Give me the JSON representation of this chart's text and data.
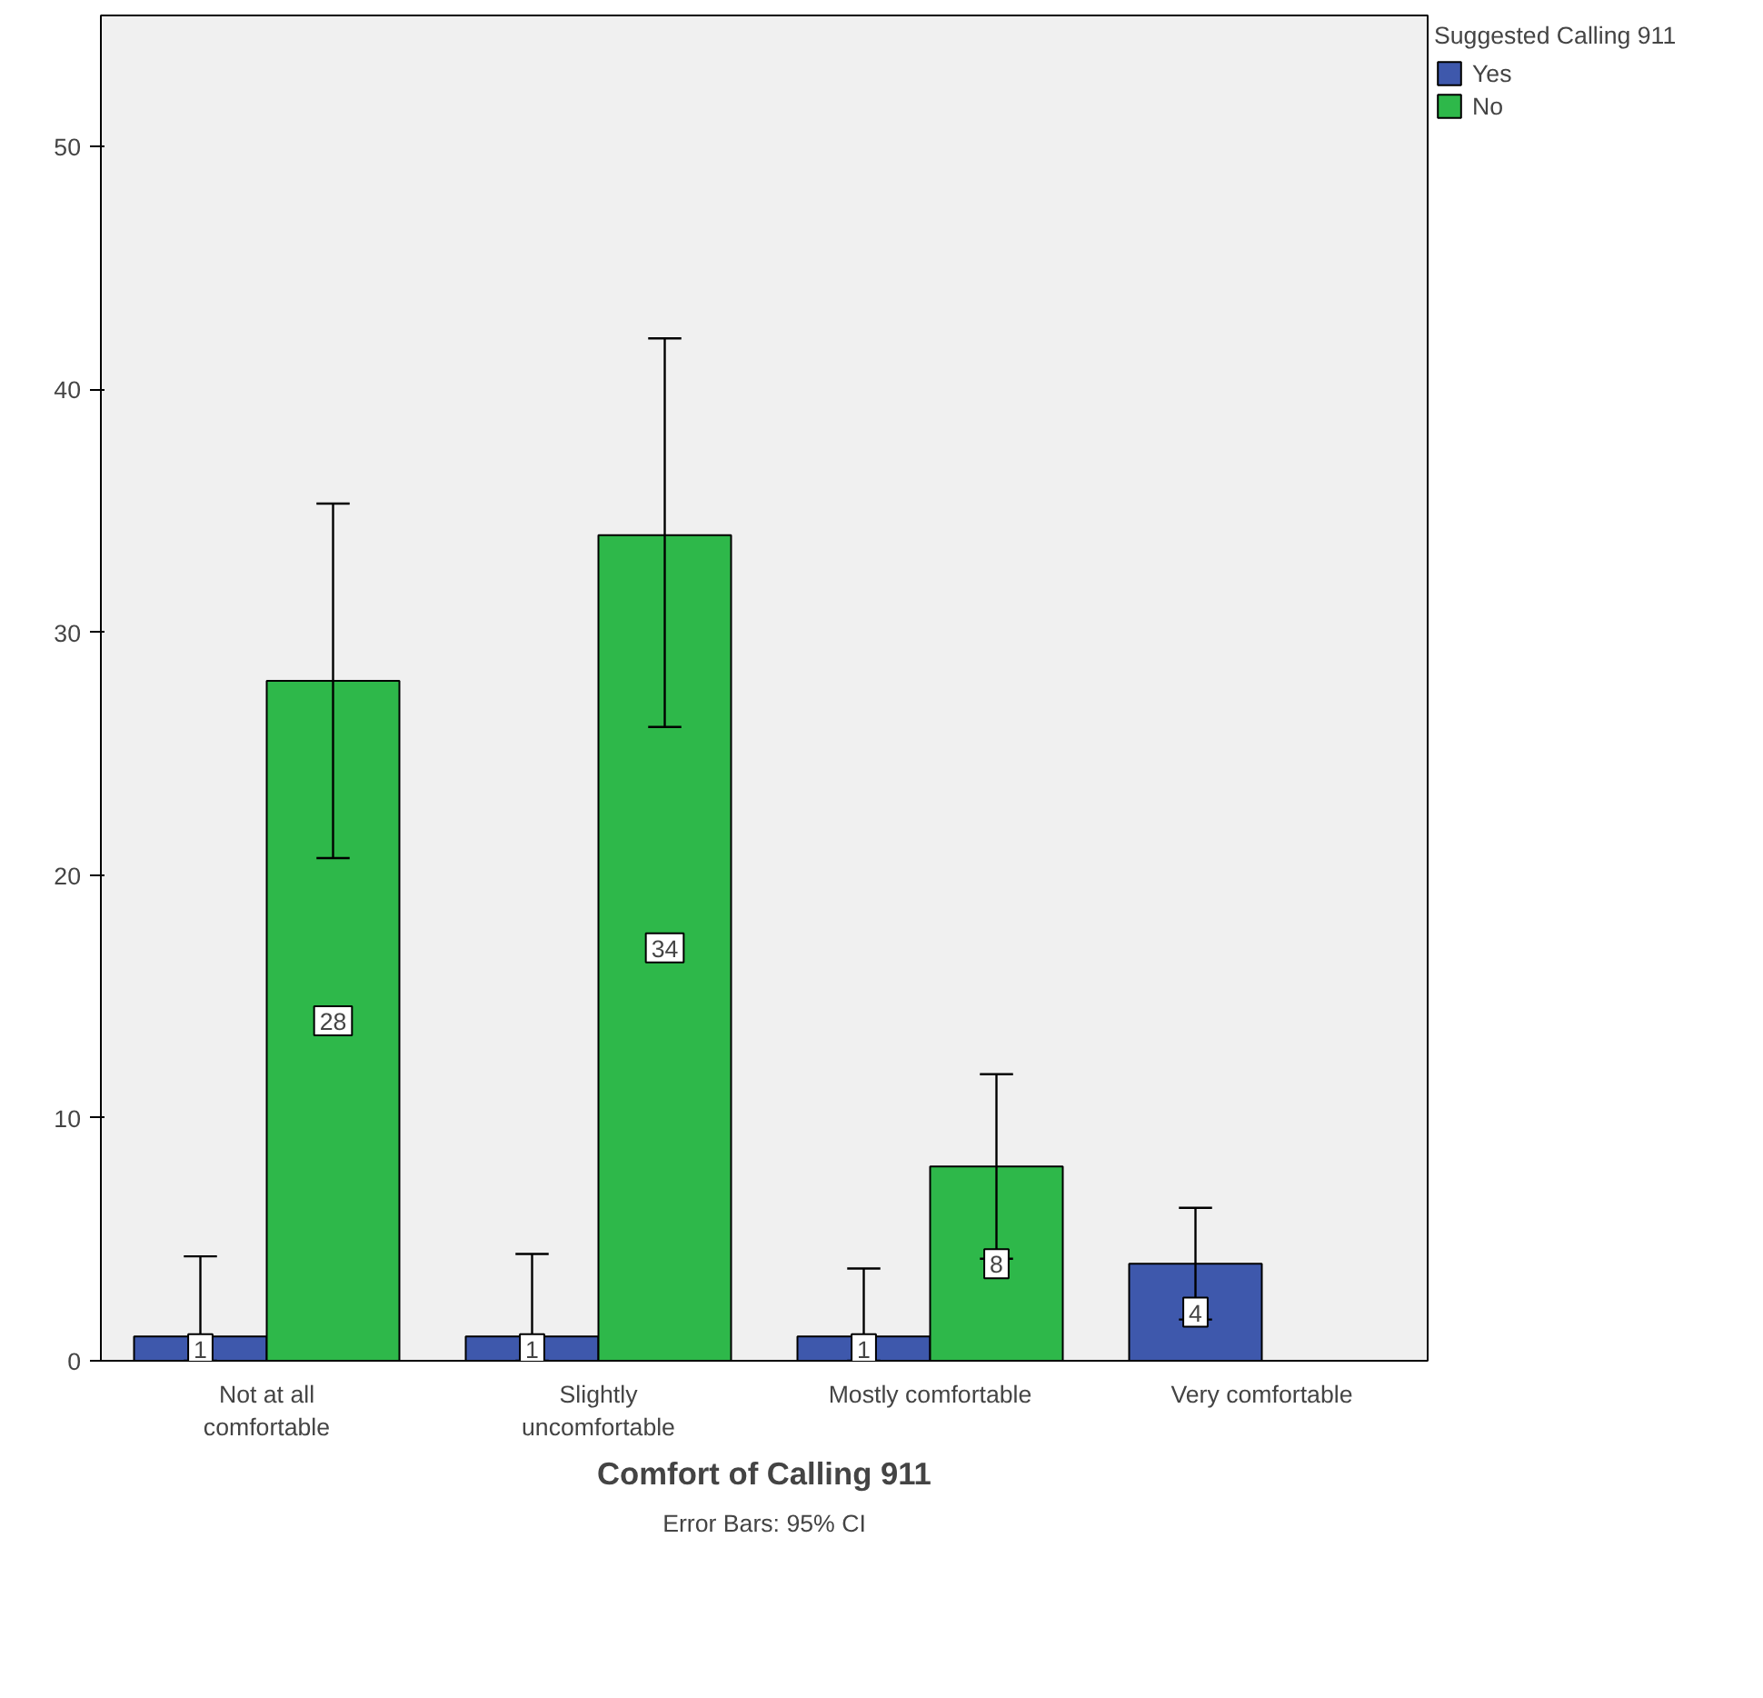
{
  "chart_data": {
    "type": "bar",
    "xlabel": "Comfort of Calling 911",
    "legend_title": "Suggested Calling 911",
    "categories": [
      "Not at all comfortable",
      "Slightly uncomfortable",
      "Mostly comfortable",
      "Very comfortable"
    ],
    "series": [
      {
        "name": "Yes",
        "color": "#3e58ac",
        "values": [
          1,
          1,
          1,
          4
        ],
        "errors": [
          [
            0,
            4.3
          ],
          [
            0,
            4.4
          ],
          [
            0,
            3.8
          ],
          [
            1.7,
            6.3
          ]
        ]
      },
      {
        "name": "No",
        "color": "#2eb84a",
        "values": [
          28,
          34,
          8,
          null
        ],
        "errors": [
          [
            20.7,
            35.3
          ],
          [
            26.1,
            42.1
          ],
          [
            4.2,
            11.8
          ],
          null
        ]
      }
    ],
    "ylim": [
      0,
      55.4
    ],
    "yticks": [
      0,
      10,
      20,
      30,
      40,
      50
    ],
    "grid": false,
    "legend": "top right",
    "data_labels": true,
    "annotations": [
      "Error Bars: 95% CI"
    ]
  }
}
